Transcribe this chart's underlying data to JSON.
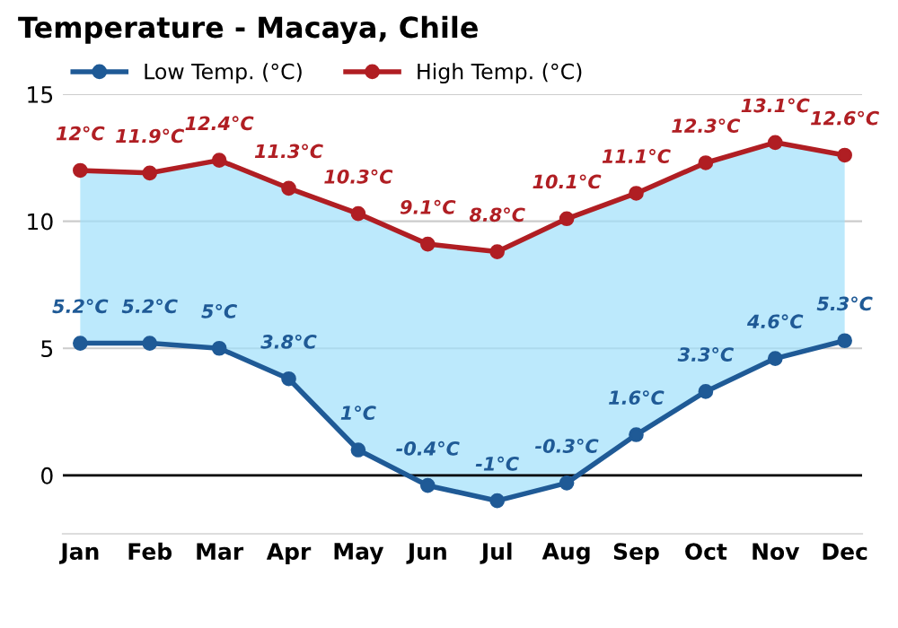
{
  "chart_data": {
    "type": "line",
    "title": "Temperature - Macaya, Chile",
    "categories": [
      "Jan",
      "Feb",
      "Mar",
      "Apr",
      "May",
      "Jun",
      "Jul",
      "Aug",
      "Sep",
      "Oct",
      "Nov",
      "Dec"
    ],
    "series": [
      {
        "name": "Low Temp. (°C)",
        "color": "#1f5a96",
        "values": [
          5.2,
          5.2,
          5,
          3.8,
          1,
          -0.4,
          -1,
          -0.3,
          1.6,
          3.3,
          4.6,
          5.3
        ],
        "value_labels": [
          "5.2°C",
          "5.2°C",
          "5°C",
          "3.8°C",
          "1°C",
          "-0.4°C",
          "-1°C",
          "-0.3°C",
          "1.6°C",
          "3.3°C",
          "4.6°C",
          "5.3°C"
        ]
      },
      {
        "name": "High Temp. (°C)",
        "color": "#b01e23",
        "values": [
          12,
          11.9,
          12.4,
          11.3,
          10.3,
          9.1,
          8.8,
          10.1,
          11.1,
          12.3,
          13.1,
          12.6
        ],
        "value_labels": [
          "12°C",
          "11.9°C",
          "12.4°C",
          "11.3°C",
          "10.3°C",
          "9.1°C",
          "8.8°C",
          "10.1°C",
          "11.1°C",
          "12.3°C",
          "13.1°C",
          "12.6°C"
        ],
        "lower": [
          5.2,
          5.2,
          5,
          3.8,
          1,
          -0.4,
          -1,
          -0.3,
          1.6,
          3.3,
          4.6,
          5.3
        ],
        "upper": [
          12,
          11.9,
          12.4,
          11.3,
          10.3,
          9.1,
          8.8,
          10.1,
          11.1,
          12.3,
          13.1,
          12.6
        ]
      }
    ],
    "ylim": [
      -2.3,
      15
    ],
    "yticks": [
      0,
      5,
      10,
      15
    ],
    "grid": "y",
    "legend": "top left",
    "marker": "circle",
    "line_style": "solid",
    "ref_lines": [
      {
        "axis": "y",
        "value": 0,
        "color": "#000000"
      }
    ]
  }
}
